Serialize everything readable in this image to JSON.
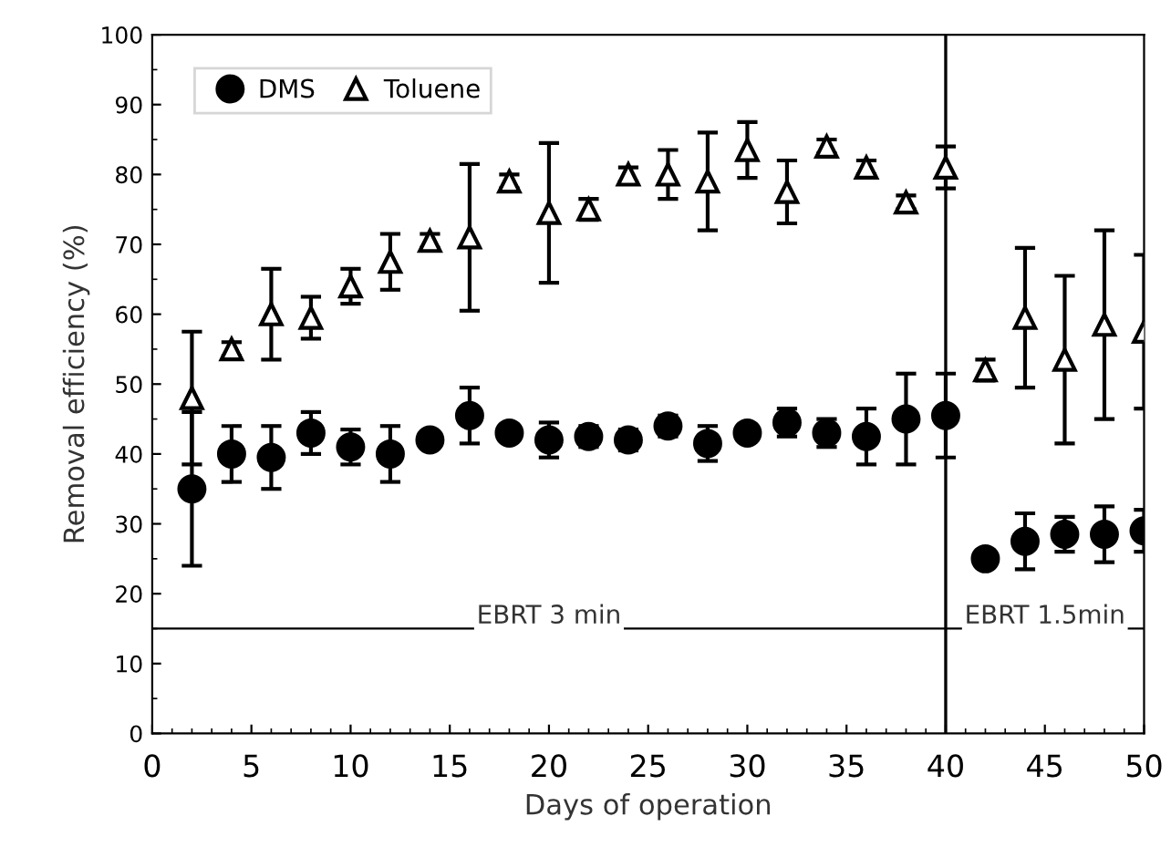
{
  "chart_data": {
    "type": "scatter",
    "xlabel": "Days of operation",
    "ylabel": "Removal efficiency (%)",
    "x": [
      2,
      4,
      6,
      8,
      10,
      12,
      14,
      16,
      18,
      20,
      22,
      24,
      26,
      28,
      30,
      32,
      34,
      36,
      38,
      40,
      42,
      44,
      46,
      48,
      50
    ],
    "series": [
      {
        "name": "DMS",
        "color": "#000000",
        "marker": "circle",
        "values": [
          35,
          40,
          39.5,
          43,
          41,
          40,
          42,
          45.5,
          43,
          42,
          42.5,
          42,
          44,
          41.5,
          43,
          44.5,
          43,
          42.5,
          45,
          45.5,
          25,
          27.5,
          28.5,
          28.5,
          29
        ],
        "errors": [
          11,
          4,
          4.5,
          3,
          2.5,
          4,
          null,
          4,
          null,
          2.5,
          1.5,
          1.5,
          1.5,
          2.5,
          null,
          2,
          2,
          4,
          6.5,
          6,
          null,
          4,
          2.5,
          4,
          3
        ]
      },
      {
        "name": "Toluene",
        "color": "#000000",
        "marker": "triangle",
        "values": [
          48,
          55,
          60,
          59.5,
          64,
          67.5,
          70.5,
          71,
          79,
          74.5,
          75,
          80,
          80,
          79,
          83.5,
          77.5,
          84,
          81,
          76,
          81,
          52,
          59.5,
          53.5,
          58.5,
          57.5
        ],
        "errors": [
          9.5,
          1,
          6.5,
          3,
          2.5,
          4,
          1,
          10.5,
          1,
          10,
          1.5,
          1,
          3.5,
          7,
          4,
          4.5,
          1,
          1,
          1,
          3,
          1.5,
          10,
          12,
          13.5,
          11
        ]
      }
    ],
    "xlim": [
      0,
      50
    ],
    "xticks": [
      0,
      5,
      10,
      15,
      20,
      25,
      30,
      35,
      40,
      45,
      50
    ],
    "ylim": [
      0,
      100
    ],
    "yticks": [
      0,
      10,
      20,
      30,
      40,
      50,
      60,
      70,
      80,
      90,
      100
    ],
    "ref_lines": [
      {
        "axis": "x",
        "value": 40
      },
      {
        "axis": "y",
        "value": 15
      }
    ],
    "annotations": [
      {
        "text": "EBRT 3 min",
        "x": 20,
        "y": 15
      },
      {
        "text": "EBRT 1.5min",
        "x": 45,
        "y": 15
      }
    ],
    "grid": false,
    "legend": "top left"
  }
}
